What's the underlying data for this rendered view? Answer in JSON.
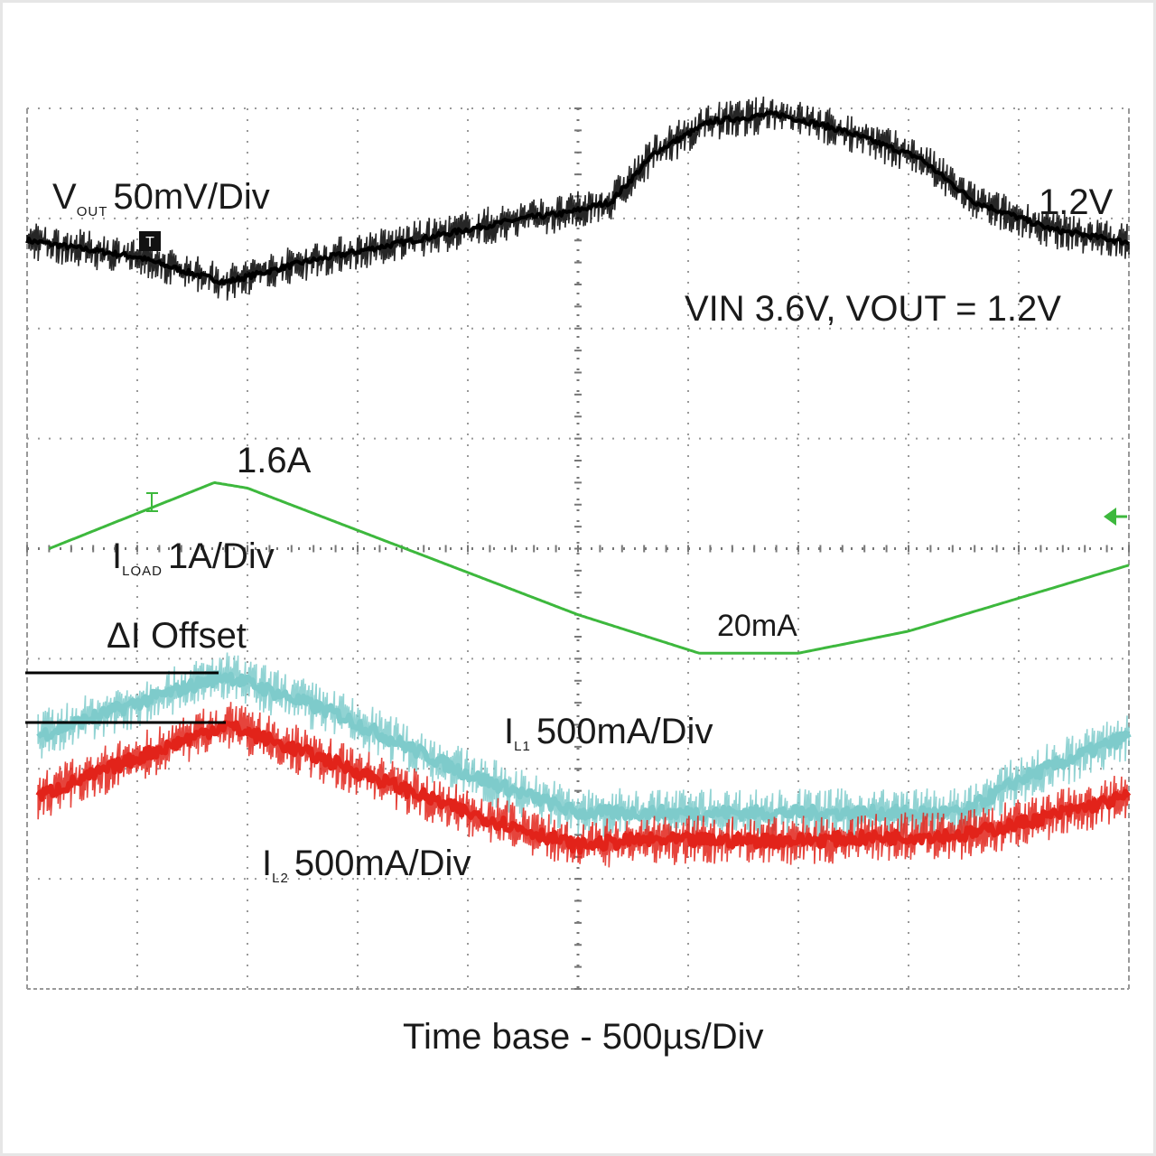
{
  "chart_data": {
    "type": "line",
    "title": "",
    "xlabel": "Time base - 500µs/Div",
    "grid": true,
    "divisions": {
      "x": 10,
      "y": 8
    },
    "time_per_div_us": 500,
    "conditions": "VIN 3.6V, VOUT = 1.2V",
    "series": [
      {
        "name": "V_OUT",
        "channel_label": {
          "main": "V",
          "sub": "OUT",
          "scale": "50mV/Div"
        },
        "color": "#000000",
        "x_div": [
          0.0,
          1.0,
          1.5,
          1.8,
          2.5,
          3.5,
          4.5,
          4.9,
          5.3,
          5.7,
          6.2,
          6.8,
          7.4,
          8.1,
          8.6,
          9.3,
          10.0
        ],
        "y_div": [
          6.8,
          6.65,
          6.5,
          6.42,
          6.6,
          6.8,
          7.0,
          7.05,
          7.15,
          7.6,
          7.88,
          7.95,
          7.8,
          7.55,
          7.15,
          6.9,
          6.78
        ],
        "annotation": "1.2V"
      },
      {
        "name": "I_LOAD",
        "channel_label": {
          "main": "I",
          "sub": "LOAD",
          "scale": "1A/Div"
        },
        "color": "#3db83d",
        "x_div": [
          0.2,
          1.7,
          2.0,
          5.0,
          6.1,
          7.0,
          8.0,
          10.0
        ],
        "y_div": [
          4.0,
          4.6,
          4.55,
          3.4,
          3.05,
          3.05,
          3.25,
          3.85
        ],
        "annotations": [
          "1.6A",
          "20mA"
        ]
      },
      {
        "name": "I_L1",
        "channel_label": {
          "main": "I",
          "sub": "L1",
          "scale": "500mA/Div"
        },
        "color": "#7ecbcb",
        "x_div": [
          0.1,
          1.0,
          1.8,
          2.8,
          4.0,
          5.0,
          5.5,
          7.0,
          8.5,
          9.0,
          10.0
        ],
        "y_div": [
          2.3,
          2.6,
          2.85,
          2.5,
          1.95,
          1.6,
          1.6,
          1.6,
          1.6,
          1.9,
          2.3
        ],
        "annotation": "ΔI Offset"
      },
      {
        "name": "I_L2",
        "channel_label": {
          "main": "I",
          "sub": "L2",
          "scale": "500mA/Div"
        },
        "color": "#e2231a",
        "x_div": [
          0.1,
          1.0,
          1.8,
          2.8,
          4.0,
          5.0,
          5.5,
          7.0,
          8.5,
          9.0,
          10.0
        ],
        "y_div": [
          1.75,
          2.1,
          2.4,
          2.05,
          1.6,
          1.3,
          1.35,
          1.35,
          1.4,
          1.5,
          1.75
        ]
      }
    ]
  }
}
